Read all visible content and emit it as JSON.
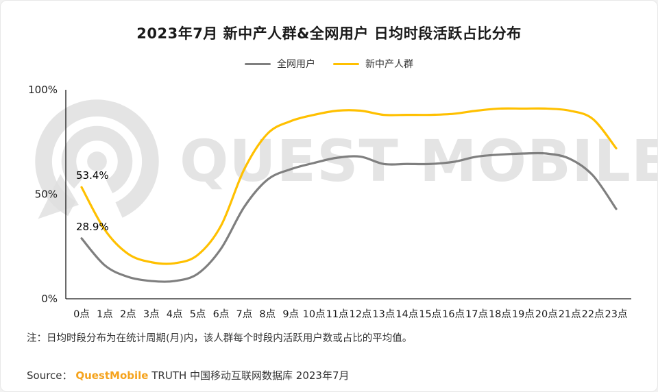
{
  "title": "2023年7月 新中产人群&全网用户 日均时段活跃占比分布",
  "legend": [
    {
      "label": "全网用户",
      "color": "#7f7f7f"
    },
    {
      "label": "新中产人群",
      "color": "#ffc000"
    }
  ],
  "chart_data": {
    "type": "line",
    "title": "2023年7月 新中产人群&全网用户 日均时段活跃占比分布",
    "xlabel": "",
    "ylabel": "",
    "ylim": [
      0,
      100
    ],
    "grid": false,
    "legend_position": "top",
    "categories": [
      "0点",
      "1点",
      "2点",
      "3点",
      "4点",
      "5点",
      "6点",
      "7点",
      "8点",
      "9点",
      "10点",
      "11点",
      "12点",
      "13点",
      "14点",
      "15点",
      "16点",
      "17点",
      "18点",
      "19点",
      "20点",
      "21点",
      "22点",
      "23点"
    ],
    "yticks": [
      {
        "value": 0,
        "label": "0%"
      },
      {
        "value": 50,
        "label": "50%"
      },
      {
        "value": 100,
        "label": "100%"
      }
    ],
    "series": [
      {
        "name": "全网用户",
        "color": "#7f7f7f",
        "values": [
          28.9,
          16,
          10.5,
          8.5,
          8.5,
          12,
          24,
          44,
          57,
          62,
          65,
          67.5,
          68,
          64.5,
          64.5,
          64.5,
          65.5,
          68,
          69,
          69.5,
          69.5,
          67,
          59,
          43
        ]
      },
      {
        "name": "新中产人群",
        "color": "#ffc000",
        "values": [
          53.4,
          33,
          21.5,
          17.5,
          17,
          21,
          35,
          62,
          79,
          85,
          88,
          90,
          90,
          88,
          88,
          88,
          88.5,
          90,
          91,
          91,
          91,
          90,
          86,
          72
        ]
      }
    ],
    "annotations": [
      {
        "series": "新中产人群",
        "index": 0,
        "text": "53.4%"
      },
      {
        "series": "全网用户",
        "index": 0,
        "text": "28.9%"
      }
    ]
  },
  "watermark": {
    "text": "QUEST MOBILE"
  },
  "note": "注：日均时段分布为在统计周期(月)内，该人群每个时段内活跃用户数或占比的平均值。",
  "source": {
    "prefix": "Source：",
    "brand": "QuestMobile",
    "rest": " TRUTH 中国移动互联网数据库 2023年7月",
    "brand_color": "#f5a31d"
  }
}
